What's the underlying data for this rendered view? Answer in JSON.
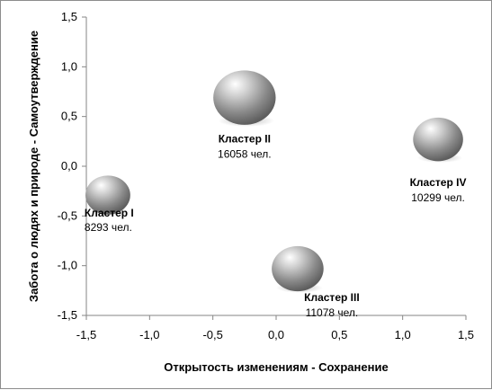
{
  "chart_data": {
    "type": "bubble",
    "xlabel": "Открытость изменениям - Сохранение",
    "ylabel": "Забота о людях и природе - Самоутверждение",
    "xlim": [
      -1.5,
      1.5
    ],
    "ylim": [
      -1.5,
      1.5
    ],
    "x_ticks": [
      "-1,5",
      "-1,0",
      "-0,5",
      "0,0",
      "0,5",
      "1,0",
      "1,5"
    ],
    "y_ticks": [
      "1,5",
      "1,0",
      "0,5",
      "0,0",
      "-0,5",
      "-1,0",
      "-1,5"
    ],
    "grid": false,
    "bubble_color": "#9a9a9a",
    "points": [
      {
        "name": "Кластер I",
        "count_label": "8293 чел.",
        "x": -1.33,
        "y": -0.29,
        "size": 8293
      },
      {
        "name": "Кластер II",
        "count_label": "16058 чел.",
        "x": -0.25,
        "y": 0.69,
        "size": 16058
      },
      {
        "name": "Кластер III",
        "count_label": "11078 чел.",
        "x": 0.17,
        "y": -1.03,
        "size": 11078
      },
      {
        "name": "Кластер IV",
        "count_label": "10299 чел.",
        "x": 1.28,
        "y": 0.27,
        "size": 10299
      }
    ]
  }
}
